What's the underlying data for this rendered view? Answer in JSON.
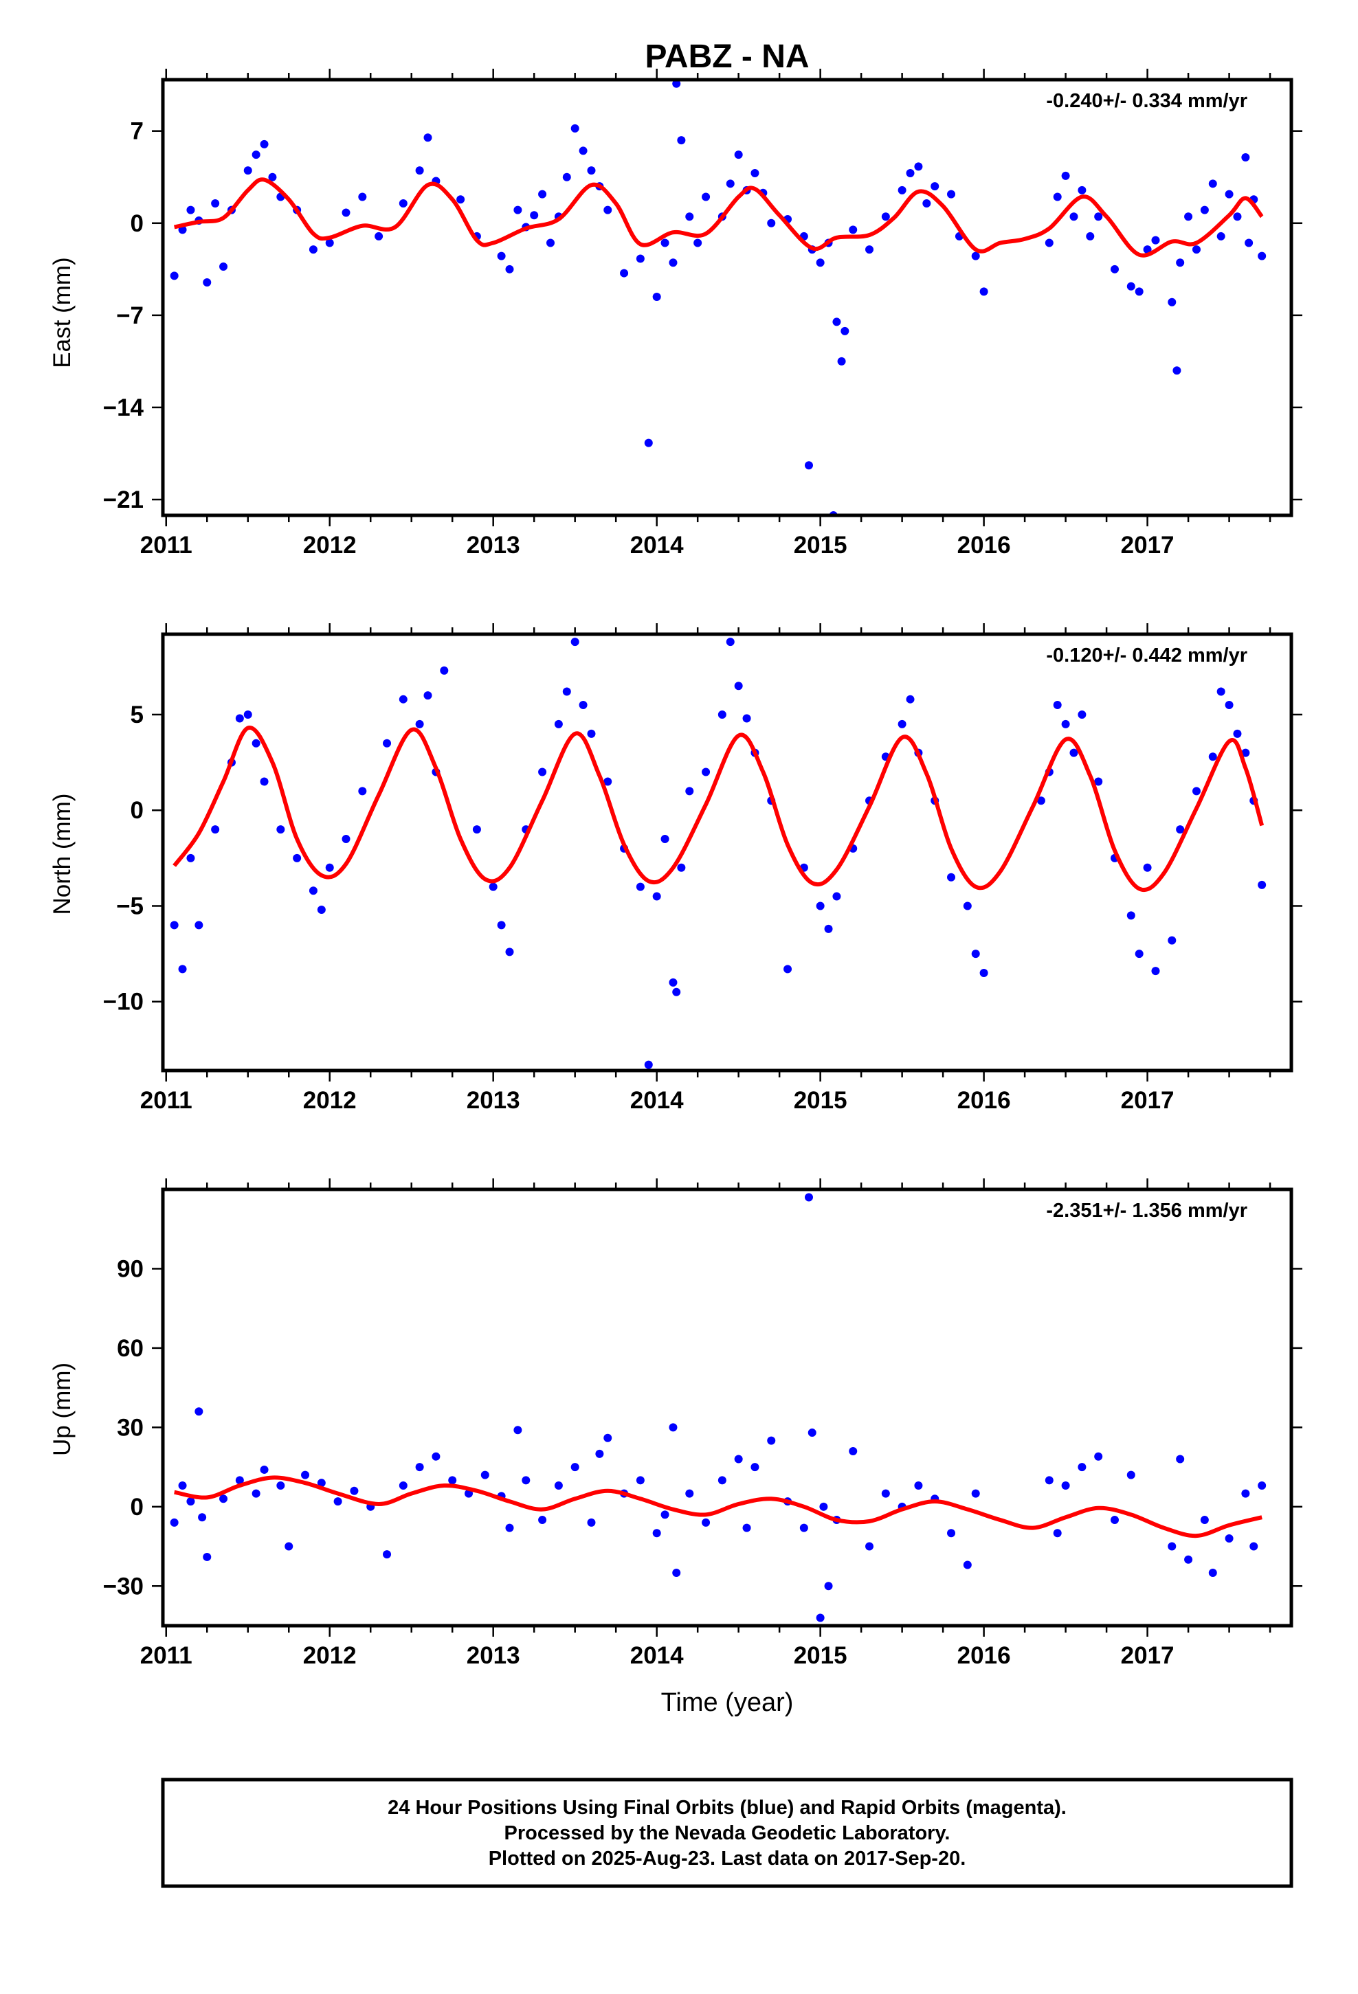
{
  "title": "PABZ - NA",
  "xlabel": "Time (year)",
  "colors": {
    "observations": "#0000ff",
    "model": "#ff0000",
    "frame": "#000000"
  },
  "footer": {
    "line1": "24 Hour Positions Using Final Orbits (blue) and Rapid Orbits (magenta).",
    "line2": "Processed by the Nevada Geodetic Laboratory.",
    "line3": "Plotted on 2025-Aug-23. Last data on 2017-Sep-20."
  },
  "chart_data": [
    {
      "type": "scatter",
      "component": "east",
      "ylabel": "East (mm)",
      "rate_label": "-0.240+/- 0.334 mm/yr",
      "xlim": [
        2010.98,
        2017.88
      ],
      "ylim": [
        -22.2,
        10.9
      ],
      "x_ticks": [
        2011,
        2012,
        2013,
        2014,
        2015,
        2016,
        2017
      ],
      "y_ticks": [
        7,
        0,
        -7,
        -14,
        -21
      ],
      "y_tick_labels": [
        "7",
        "0",
        "−7",
        "−14",
        "−21"
      ],
      "model_curve": {
        "color": "#ff0000",
        "x": [
          2011.05,
          2011.2,
          2011.35,
          2011.5,
          2011.6,
          2011.75,
          2011.9,
          2012.0,
          2012.2,
          2012.4,
          2012.6,
          2012.75,
          2012.9,
          2013.0,
          2013.2,
          2013.4,
          2013.6,
          2013.75,
          2013.9,
          2014.1,
          2014.3,
          2014.5,
          2014.6,
          2014.75,
          2014.95,
          2015.1,
          2015.3,
          2015.45,
          2015.6,
          2015.75,
          2015.95,
          2016.1,
          2016.25,
          2016.4,
          2016.6,
          2016.75,
          2016.95,
          2017.15,
          2017.3,
          2017.5,
          2017.6,
          2017.7
        ],
        "y": [
          -0.3,
          0.1,
          0.4,
          2.5,
          3.3,
          1.8,
          -0.8,
          -1.1,
          -0.2,
          -0.3,
          2.9,
          1.8,
          -1.3,
          -1.5,
          -0.4,
          0.3,
          2.9,
          1.5,
          -1.6,
          -0.7,
          -0.8,
          2.0,
          2.6,
          0.6,
          -1.9,
          -1.1,
          -0.9,
          0.4,
          2.4,
          1.3,
          -2.0,
          -1.5,
          -1.2,
          -0.4,
          2.0,
          0.5,
          -2.4,
          -1.4,
          -1.5,
          0.6,
          1.9,
          0.5
        ]
      },
      "points": {
        "x": [
          2011.05,
          2011.1,
          2011.15,
          2011.2,
          2011.25,
          2011.3,
          2011.35,
          2011.4,
          2011.5,
          2011.55,
          2011.6,
          2011.65,
          2011.7,
          2011.8,
          2011.9,
          2012.0,
          2012.1,
          2012.2,
          2012.3,
          2012.45,
          2012.55,
          2012.6,
          2012.65,
          2012.8,
          2012.9,
          2013.05,
          2013.1,
          2013.15,
          2013.2,
          2013.25,
          2013.3,
          2013.35,
          2013.4,
          2013.45,
          2013.5,
          2013.55,
          2013.6,
          2013.65,
          2013.7,
          2013.8,
          2013.9,
          2013.95,
          2014.0,
          2014.05,
          2014.1,
          2014.12,
          2014.15,
          2014.2,
          2014.25,
          2014.3,
          2014.4,
          2014.45,
          2014.5,
          2014.55,
          2014.6,
          2014.65,
          2014.7,
          2014.8,
          2014.9,
          2014.93,
          2014.95,
          2015.0,
          2015.05,
          2015.08,
          2015.1,
          2015.13,
          2015.15,
          2015.2,
          2015.3,
          2015.4,
          2015.5,
          2015.55,
          2015.6,
          2015.65,
          2015.7,
          2015.8,
          2015.85,
          2015.95,
          2016.0,
          2016.4,
          2016.45,
          2016.5,
          2016.55,
          2016.6,
          2016.65,
          2016.7,
          2016.8,
          2016.9,
          2016.95,
          2017.0,
          2017.05,
          2017.15,
          2017.18,
          2017.2,
          2017.25,
          2017.3,
          2017.35,
          2017.4,
          2017.45,
          2017.5,
          2017.55,
          2017.6,
          2017.62,
          2017.65,
          2017.7
        ],
        "y": [
          -4.0,
          -0.5,
          1.0,
          0.2,
          -4.5,
          1.5,
          -3.3,
          1.0,
          4.0,
          5.2,
          6.0,
          3.5,
          2.0,
          1.0,
          -2.0,
          -1.5,
          0.8,
          2.0,
          -1.0,
          1.5,
          4.0,
          6.5,
          3.2,
          1.8,
          -1.0,
          -2.5,
          -3.5,
          1.0,
          -0.3,
          0.6,
          2.2,
          -1.5,
          0.5,
          3.5,
          7.2,
          5.5,
          4.0,
          2.8,
          1.0,
          -3.8,
          -2.7,
          -16.7,
          -5.6,
          -1.5,
          -3.0,
          10.6,
          6.3,
          0.5,
          -1.5,
          2.0,
          0.5,
          3.0,
          5.2,
          2.5,
          3.8,
          2.3,
          0.0,
          0.3,
          -1.0,
          -18.4,
          -2.0,
          -3.0,
          -1.5,
          -22.2,
          -7.5,
          -10.5,
          -8.2,
          -0.5,
          -2.0,
          0.5,
          2.5,
          3.8,
          4.3,
          1.5,
          2.8,
          2.2,
          -1.0,
          -2.5,
          -5.2,
          -1.5,
          2.0,
          3.6,
          0.5,
          2.5,
          -1.0,
          0.5,
          -3.5,
          -4.8,
          -5.2,
          -2.0,
          -1.3,
          -6.0,
          -11.2,
          -3.0,
          0.5,
          -2.0,
          1.0,
          3.0,
          -1.0,
          2.2,
          0.5,
          5.0,
          -1.5,
          1.8,
          -2.5
        ]
      }
    },
    {
      "type": "scatter",
      "component": "north",
      "ylabel": "North (mm)",
      "rate_label": "-0.120+/- 0.442 mm/yr",
      "xlim": [
        2010.98,
        2017.88
      ],
      "ylim": [
        -13.6,
        9.2
      ],
      "x_ticks": [
        2011,
        2012,
        2013,
        2014,
        2015,
        2016,
        2017
      ],
      "y_ticks": [
        5,
        0,
        -5,
        -10
      ],
      "y_tick_labels": [
        "5",
        "0",
        "−5",
        "−10"
      ],
      "model_curve": {
        "color": "#ff0000",
        "x": [
          2011.05,
          2011.2,
          2011.35,
          2011.5,
          2011.65,
          2011.8,
          2011.95,
          2012.1,
          2012.3,
          2012.5,
          2012.65,
          2012.8,
          2012.95,
          2013.1,
          2013.3,
          2013.5,
          2013.65,
          2013.8,
          2013.95,
          2014.1,
          2014.3,
          2014.5,
          2014.65,
          2014.8,
          2014.95,
          2015.1,
          2015.3,
          2015.5,
          2015.65,
          2015.8,
          2015.95,
          2016.1,
          2016.3,
          2016.5,
          2016.65,
          2016.8,
          2016.95,
          2017.1,
          2017.3,
          2017.5,
          2017.6,
          2017.7
        ],
        "y": [
          -2.9,
          -1.2,
          1.5,
          4.3,
          2.5,
          -1.5,
          -3.4,
          -2.8,
          0.8,
          4.2,
          2.2,
          -1.5,
          -3.6,
          -3.0,
          0.5,
          4.0,
          1.8,
          -1.8,
          -3.7,
          -3.0,
          0.3,
          3.9,
          2.0,
          -1.8,
          -3.8,
          -3.1,
          0.2,
          3.8,
          1.9,
          -2.0,
          -4.0,
          -3.2,
          0.2,
          3.7,
          1.8,
          -2.1,
          -4.1,
          -3.3,
          0.1,
          3.6,
          2.2,
          -0.8
        ]
      },
      "points": {
        "x": [
          2011.05,
          2011.1,
          2011.15,
          2011.2,
          2011.3,
          2011.4,
          2011.45,
          2011.5,
          2011.55,
          2011.6,
          2011.7,
          2011.8,
          2011.9,
          2011.95,
          2012.0,
          2012.1,
          2012.2,
          2012.35,
          2012.45,
          2012.55,
          2012.6,
          2012.65,
          2012.7,
          2012.9,
          2013.0,
          2013.05,
          2013.1,
          2013.2,
          2013.3,
          2013.4,
          2013.45,
          2013.5,
          2013.55,
          2013.6,
          2013.7,
          2013.8,
          2013.9,
          2013.95,
          2014.0,
          2014.05,
          2014.1,
          2014.12,
          2014.15,
          2014.2,
          2014.3,
          2014.4,
          2014.45,
          2014.5,
          2014.55,
          2014.6,
          2014.7,
          2014.8,
          2014.9,
          2015.0,
          2015.05,
          2015.1,
          2015.2,
          2015.3,
          2015.4,
          2015.5,
          2015.55,
          2015.6,
          2015.7,
          2015.8,
          2015.9,
          2015.95,
          2016.0,
          2016.35,
          2016.4,
          2016.45,
          2016.5,
          2016.55,
          2016.6,
          2016.7,
          2016.8,
          2016.9,
          2016.95,
          2017.0,
          2017.05,
          2017.15,
          2017.2,
          2017.3,
          2017.4,
          2017.45,
          2017.5,
          2017.55,
          2017.6,
          2017.65,
          2017.7
        ],
        "y": [
          -6.0,
          -8.3,
          -2.5,
          -6.0,
          -1.0,
          2.5,
          4.8,
          5.0,
          3.5,
          1.5,
          -1.0,
          -2.5,
          -4.2,
          -5.2,
          -3.0,
          -1.5,
          1.0,
          3.5,
          5.8,
          4.5,
          6.0,
          2.0,
          7.3,
          -1.0,
          -4.0,
          -6.0,
          -7.4,
          -1.0,
          2.0,
          4.5,
          6.2,
          8.8,
          5.5,
          4.0,
          1.5,
          -2.0,
          -4.0,
          -13.3,
          -4.5,
          -1.5,
          -9.0,
          -9.5,
          -3.0,
          1.0,
          2.0,
          5.0,
          8.8,
          6.5,
          4.8,
          3.0,
          0.5,
          -8.3,
          -3.0,
          -5.0,
          -6.2,
          -4.5,
          -2.0,
          0.5,
          2.8,
          4.5,
          5.8,
          3.0,
          0.5,
          -3.5,
          -5.0,
          -7.5,
          -8.5,
          0.5,
          2.0,
          5.5,
          4.5,
          3.0,
          5.0,
          1.5,
          -2.5,
          -5.5,
          -7.5,
          -3.0,
          -8.4,
          -6.8,
          -1.0,
          1.0,
          2.8,
          6.2,
          5.5,
          4.0,
          3.0,
          0.5,
          -3.9
        ]
      }
    },
    {
      "type": "scatter",
      "component": "up",
      "ylabel": "Up (mm)",
      "rate_label": "-2.351+/- 1.356 mm/yr",
      "xlim": [
        2010.98,
        2017.88
      ],
      "ylim": [
        -45,
        120
      ],
      "x_ticks": [
        2011,
        2012,
        2013,
        2014,
        2015,
        2016,
        2017
      ],
      "y_ticks": [
        90,
        60,
        30,
        0,
        -30
      ],
      "y_tick_labels": [
        "90",
        "60",
        "30",
        "0",
        "−30"
      ],
      "model_curve": {
        "color": "#ff0000",
        "x": [
          2011.05,
          2011.25,
          2011.45,
          2011.65,
          2011.85,
          2012.05,
          2012.3,
          2012.5,
          2012.7,
          2012.9,
          2013.1,
          2013.3,
          2013.5,
          2013.7,
          2013.9,
          2014.1,
          2014.3,
          2014.5,
          2014.7,
          2014.9,
          2015.1,
          2015.3,
          2015.5,
          2015.7,
          2015.9,
          2016.1,
          2016.3,
          2016.5,
          2016.7,
          2016.9,
          2017.1,
          2017.3,
          2017.5,
          2017.7
        ],
        "y": [
          5.5,
          3.5,
          8.0,
          11.0,
          9.0,
          5.0,
          1.0,
          5.0,
          8.0,
          6.0,
          2.0,
          -1.0,
          3.0,
          6.0,
          3.0,
          -1.0,
          -3.0,
          1.0,
          3.0,
          0.0,
          -5.0,
          -5.5,
          -1.0,
          2.0,
          -1.0,
          -5.0,
          -8.0,
          -4.0,
          -0.5,
          -3.0,
          -8.0,
          -11.0,
          -7.0,
          -4.0
        ]
      },
      "points": {
        "x": [
          2011.05,
          2011.1,
          2011.15,
          2011.2,
          2011.22,
          2011.25,
          2011.35,
          2011.45,
          2011.55,
          2011.6,
          2011.7,
          2011.75,
          2011.85,
          2011.95,
          2012.05,
          2012.15,
          2012.25,
          2012.35,
          2012.45,
          2012.55,
          2012.65,
          2012.75,
          2012.85,
          2012.95,
          2013.05,
          2013.1,
          2013.15,
          2013.2,
          2013.3,
          2013.4,
          2013.5,
          2013.6,
          2013.65,
          2013.7,
          2013.8,
          2013.9,
          2014.0,
          2014.05,
          2014.1,
          2014.12,
          2014.2,
          2014.3,
          2014.4,
          2014.5,
          2014.55,
          2014.6,
          2014.7,
          2014.8,
          2014.9,
          2014.93,
          2014.95,
          2015.0,
          2015.02,
          2015.05,
          2015.1,
          2015.2,
          2015.3,
          2015.4,
          2015.5,
          2015.6,
          2015.7,
          2015.8,
          2015.9,
          2015.95,
          2016.4,
          2016.45,
          2016.5,
          2016.6,
          2016.7,
          2016.8,
          2016.9,
          2017.15,
          2017.2,
          2017.25,
          2017.35,
          2017.4,
          2017.5,
          2017.6,
          2017.65,
          2017.7
        ],
        "y": [
          -6.0,
          8.0,
          2.0,
          36.0,
          -4.0,
          -19.0,
          3.0,
          10.0,
          5.0,
          14.0,
          8.0,
          -15.0,
          12.0,
          9.0,
          2.0,
          6.0,
          0.0,
          -18.0,
          8.0,
          15.0,
          19.0,
          10.0,
          5.0,
          12.0,
          4.0,
          -8.0,
          29.0,
          10.0,
          -5.0,
          8.0,
          15.0,
          -6.0,
          20.0,
          26.0,
          5.0,
          10.0,
          -10.0,
          -3.0,
          30.0,
          -25.0,
          5.0,
          -6.0,
          10.0,
          18.0,
          -8.0,
          15.0,
          25.0,
          2.0,
          -8.0,
          117.0,
          28.0,
          -42.0,
          0.0,
          -30.0,
          -5.0,
          21.0,
          -15.0,
          5.0,
          0.0,
          8.0,
          3.0,
          -10.0,
          -22.0,
          5.0,
          10.0,
          -10.0,
          8.0,
          15.0,
          19.0,
          -5.0,
          12.0,
          -15.0,
          18.0,
          -20.0,
          -5.0,
          -25.0,
          -12.0,
          5.0,
          -15.0,
          8.0
        ]
      }
    }
  ]
}
